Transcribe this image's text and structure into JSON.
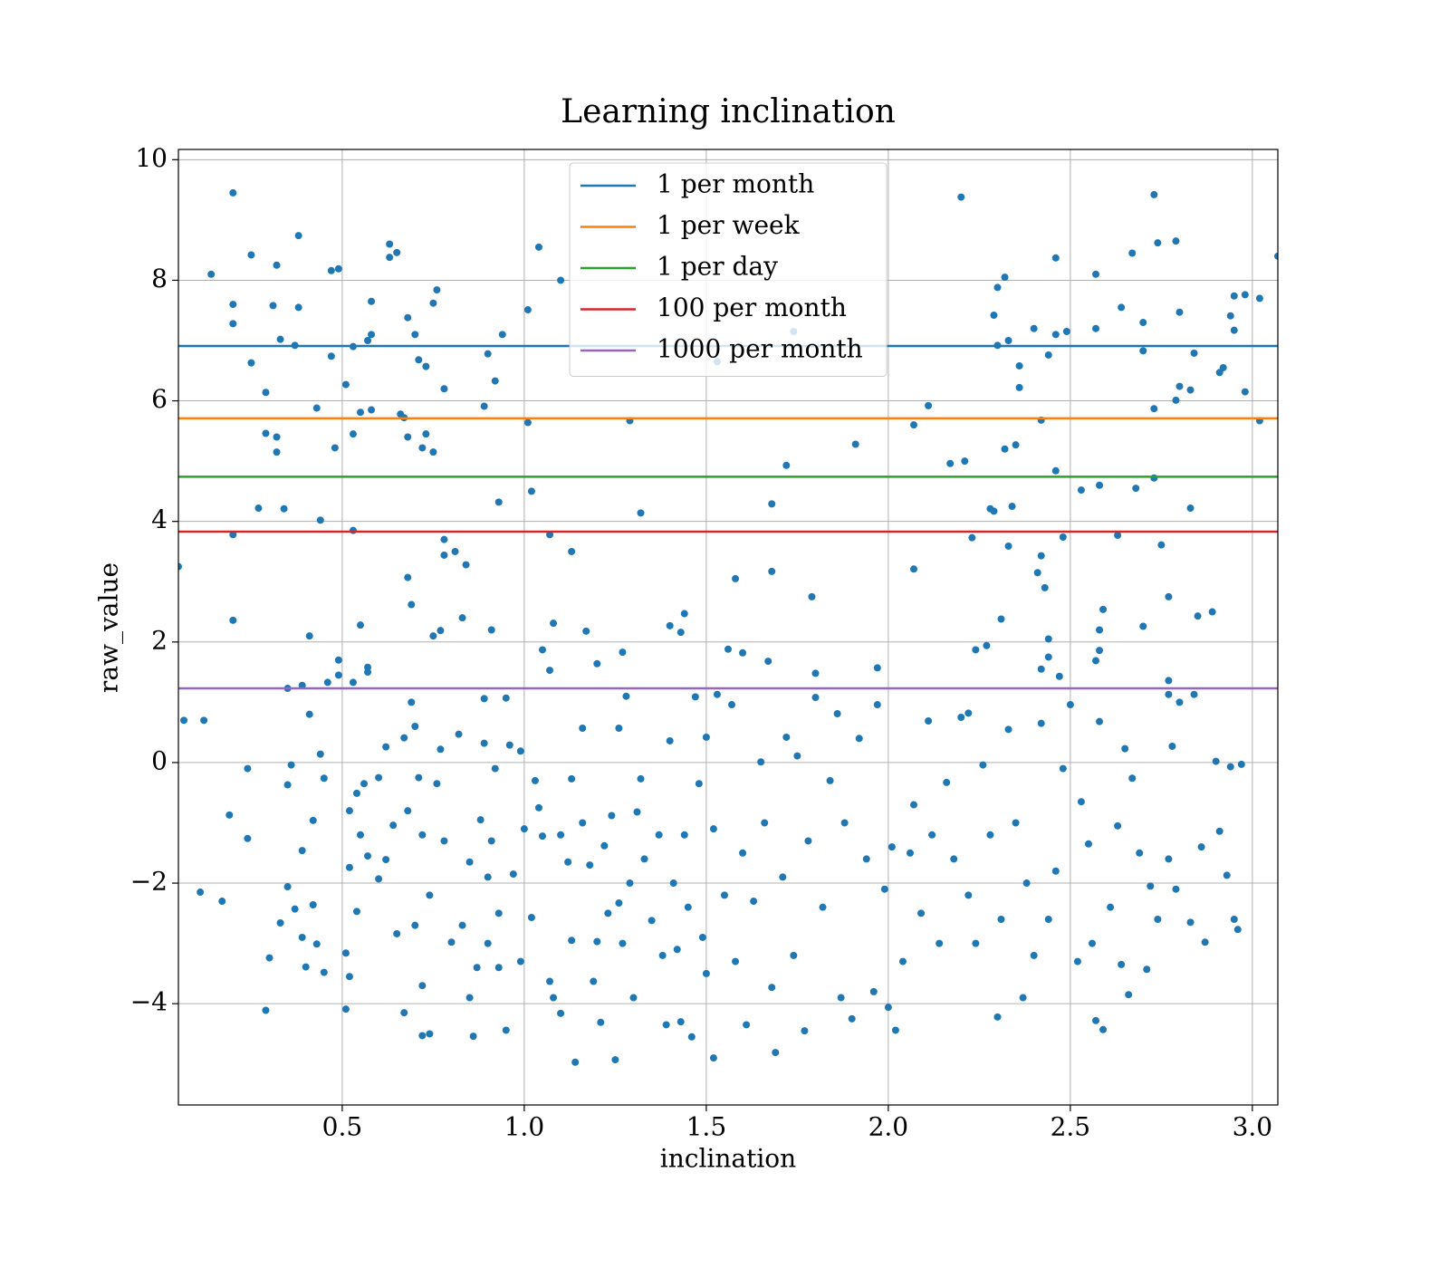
{
  "chart_data": {
    "type": "scatter",
    "title": "Learning inclination",
    "x_label": "inclination",
    "y_label": "raw_value",
    "color": "#1f77b4",
    "grid": true,
    "legend": "upper center",
    "xlim": [
      0.05,
      3.07
    ],
    "ylim": [
      -5.68,
      10.17
    ],
    "xticks": [
      0.5,
      {
        "value": 1,
        "label": "1.0"
      },
      1.5,
      {
        "value": 2,
        "label": "2.0"
      },
      2.5,
      {
        "value": 3,
        "label": "3.0"
      }
    ],
    "yticks": [
      {
        "value": -4,
        "label": "−4"
      },
      {
        "value": -2,
        "label": "−2"
      },
      0,
      2,
      4,
      6,
      8,
      10
    ],
    "hlines": [
      {
        "name": "1 per month",
        "color": "#1f77b4",
        "value": 6.91
      },
      {
        "name": "1 per week",
        "color": "#ff7f0e",
        "value": 5.71
      },
      {
        "name": "1 per day",
        "color": "#2ca02c",
        "value": 4.74
      },
      {
        "name": "100 per month",
        "color": "#d62728",
        "value": 3.83
      },
      {
        "name": "1000 per month",
        "color": "#9467bd",
        "value": 1.23
      }
    ],
    "x": [
      0.05,
      0.065,
      0.12,
      0.14,
      0.2,
      0.2,
      0.2,
      0.2,
      0.2,
      0.19,
      0.24,
      0.25,
      0.25,
      0.27,
      0.29,
      0.29,
      0.31,
      0.32,
      0.32,
      0.32,
      0.33,
      0.34,
      0.35,
      0.37,
      0.38,
      0.38,
      0.39,
      0.39,
      0.41,
      0.41,
      0.43,
      0.44,
      0.44,
      0.46,
      0.47,
      0.47,
      0.48,
      0.49,
      0.49,
      0.49,
      0.51,
      0.53,
      0.53,
      0.53,
      0.53,
      0.55,
      0.55,
      0.57,
      0.58,
      0.58,
      0.58,
      0.57,
      0.57,
      0.63,
      0.63,
      0.65,
      0.66,
      0.67,
      0.68,
      0.68,
      0.68,
      0.69,
      0.7,
      0.71,
      0.73,
      0.72,
      0.73,
      0.75,
      0.75,
      0.76,
      0.77,
      0.75,
      0.78,
      0.78,
      0.78,
      0.81,
      0.83,
      0.84,
      0.89,
      0.9,
      0.92,
      0.91,
      0.93,
      0.94,
      1.01,
      1.01,
      1.02,
      1.04,
      1.07,
      1.07,
      1.08,
      1.05,
      1.1,
      1.13,
      1.17,
      1.2,
      1.27,
      1.29,
      1.32,
      1.4,
      1.43,
      1.44,
      1.53,
      1.56,
      1.58,
      1.6,
      1.67,
      1.68,
      1.68,
      1.72,
      1.74,
      1.79,
      1.8,
      1.91,
      1.97,
      2.07,
      2.07,
      2.11,
      2.17,
      2.2,
      2.21,
      2.23,
      2.24,
      2.27,
      2.28,
      2.29,
      2.29,
      2.3,
      2.3,
      2.31,
      2.32,
      2.32,
      2.33,
      2.33,
      2.34,
      2.35,
      2.36,
      2.36,
      2.4,
      2.41,
      2.42,
      2.42,
      2.43,
      2.44,
      2.44,
      2.44,
      2.42,
      2.46,
      2.46,
      2.46,
      2.47,
      2.48,
      2.49,
      2.53,
      2.57,
      2.57,
      2.58,
      2.58,
      2.58,
      2.57,
      2.59,
      2.63,
      2.64,
      2.67,
      2.68,
      2.7,
      2.7,
      2.7,
      2.73,
      2.73,
      2.73,
      2.74,
      2.75,
      2.77,
      2.77,
      2.77,
      2.79,
      2.79,
      2.8,
      2.8,
      2.8,
      2.83,
      2.83,
      2.84,
      2.84,
      2.85,
      2.89,
      2.91,
      2.92,
      2.94,
      2.95,
      2.95,
      2.98,
      2.98,
      3.02,
      3.02,
      3.07,
      0.11,
      0.17,
      0.24,
      0.29,
      0.3,
      0.33,
      0.35,
      0.35,
      0.36,
      0.37,
      0.39,
      0.4,
      0.42,
      0.42,
      0.43,
      0.45,
      0.45,
      0.51,
      0.51,
      0.52,
      0.52,
      0.52,
      0.54,
      0.54,
      0.55,
      0.56,
      0.57,
      0.6,
      0.6,
      0.62,
      0.62,
      0.64,
      0.65,
      0.67,
      0.67,
      0.68,
      0.69,
      0.7,
      0.7,
      0.71,
      0.72,
      0.72,
      0.72,
      0.74,
      0.74,
      0.76,
      0.77,
      0.78,
      0.8,
      0.82,
      0.83,
      0.85,
      0.85,
      0.86,
      0.87,
      0.88,
      0.89,
      0.89,
      0.9,
      0.9,
      0.91,
      0.92,
      0.93,
      0.93,
      0.95,
      0.95,
      0.96,
      0.97,
      0.99,
      0.99,
      1.0,
      1.02,
      1.03,
      1.04,
      1.05,
      1.07,
      1.08,
      1.1,
      1.1,
      1.12,
      1.13,
      1.13,
      1.14,
      1.16,
      1.16,
      1.18,
      1.19,
      1.2,
      1.21,
      1.22,
      1.23,
      1.24,
      1.25,
      1.26,
      1.26,
      1.27,
      1.28,
      1.29,
      1.3,
      1.31,
      1.32,
      1.33,
      1.35,
      1.37,
      1.38,
      1.39,
      1.4,
      1.41,
      1.42,
      1.43,
      1.44,
      1.45,
      1.46,
      1.47,
      1.48,
      1.49,
      1.5,
      1.5,
      1.52,
      1.52,
      1.53,
      1.55,
      1.57,
      1.58,
      1.6,
      1.61,
      1.63,
      1.65,
      1.66,
      1.68,
      1.69,
      1.71,
      1.72,
      1.74,
      1.75,
      1.77,
      1.78,
      1.8,
      1.82,
      1.84,
      1.86,
      1.87,
      1.88,
      1.9,
      1.92,
      1.94,
      1.96,
      1.97,
      1.99,
      2.0,
      2.01,
      2.02,
      2.04,
      2.06,
      2.07,
      2.09,
      2.11,
      2.12,
      2.14,
      2.16,
      2.18,
      2.2,
      2.22,
      2.22,
      2.24,
      2.26,
      2.28,
      2.3,
      2.31,
      2.33,
      2.35,
      2.37,
      2.38,
      2.4,
      2.42,
      2.44,
      2.46,
      2.48,
      2.5,
      2.52,
      2.53,
      2.55,
      2.56,
      2.57,
      2.58,
      2.59,
      2.61,
      2.63,
      2.64,
      2.65,
      2.66,
      2.67,
      2.69,
      2.71,
      2.72,
      2.74,
      2.77,
      2.78,
      2.79,
      2.83,
      2.86,
      2.87,
      2.9,
      2.91,
      2.93,
      2.94,
      2.95,
      2.96,
      2.97
    ],
    "y": [
      3.25,
      0.7,
      0.7,
      8.1,
      9.45,
      7.6,
      7.28,
      3.78,
      2.36,
      -0.87,
      -0.1,
      8.42,
      6.63,
      4.22,
      6.14,
      5.46,
      7.58,
      8.25,
      5.4,
      5.15,
      7.02,
      4.21,
      1.23,
      6.92,
      8.74,
      7.55,
      -1.46,
      1.28,
      0.8,
      2.1,
      5.88,
      4.02,
      0.14,
      1.33,
      8.16,
      6.74,
      5.22,
      8.19,
      1.7,
      1.45,
      6.27,
      5.45,
      6.9,
      3.85,
      1.33,
      2.28,
      5.81,
      7.0,
      7.65,
      7.1,
      5.85,
      1.58,
      1.5,
      8.6,
      8.38,
      8.46,
      5.78,
      5.72,
      7.38,
      5.4,
      3.07,
      2.62,
      7.1,
      6.68,
      6.57,
      5.22,
      5.45,
      7.62,
      5.15,
      7.84,
      2.19,
      2.1,
      6.2,
      3.7,
      3.44,
      3.5,
      2.4,
      3.28,
      5.91,
      6.78,
      6.33,
      2.2,
      4.32,
      7.1,
      7.51,
      5.64,
      4.5,
      8.55,
      3.78,
      1.53,
      2.31,
      1.87,
      8.0,
      3.5,
      2.18,
      1.64,
      1.83,
      5.67,
      4.14,
      2.27,
      2.16,
      2.47,
      6.65,
      1.88,
      3.05,
      1.82,
      1.68,
      3.17,
      4.29,
      4.93,
      7.15,
      2.75,
      1.48,
      5.28,
      1.57,
      5.6,
      3.21,
      5.92,
      4.96,
      9.38,
      5.0,
      3.73,
      1.87,
      1.94,
      4.21,
      4.17,
      7.42,
      7.88,
      6.92,
      2.38,
      5.2,
      8.05,
      7.0,
      3.59,
      4.25,
      5.27,
      6.22,
      6.58,
      7.2,
      3.15,
      3.43,
      5.68,
      2.9,
      6.76,
      2.05,
      1.75,
      1.55,
      8.37,
      7.1,
      4.84,
      1.43,
      3.74,
      7.15,
      4.52,
      7.2,
      8.1,
      4.6,
      2.2,
      1.86,
      1.69,
      2.54,
      3.77,
      7.55,
      8.45,
      4.55,
      6.83,
      7.3,
      2.26,
      9.42,
      5.87,
      4.72,
      8.62,
      3.61,
      2.75,
      1.36,
      1.13,
      8.65,
      6.01,
      7.47,
      6.24,
      1.0,
      6.18,
      4.22,
      6.79,
      1.13,
      2.43,
      2.5,
      6.47,
      6.55,
      7.41,
      7.74,
      7.17,
      7.76,
      6.15,
      7.7,
      5.67,
      8.4,
      -2.15,
      -2.3,
      -1.26,
      -4.11,
      -3.24,
      -2.66,
      -0.37,
      -2.06,
      -0.04,
      -2.43,
      -2.9,
      -3.39,
      -0.96,
      -2.36,
      -3.01,
      -0.26,
      -3.48,
      -3.16,
      -4.09,
      -0.8,
      -1.74,
      -3.55,
      -0.51,
      -2.47,
      -1.2,
      -0.35,
      -1.55,
      -0.25,
      -1.93,
      0.26,
      -1.61,
      -1.04,
      -2.84,
      0.41,
      -4.15,
      -0.8,
      1.0,
      0.6,
      -2.7,
      -0.25,
      -1.2,
      -3.7,
      -4.53,
      -4.5,
      -2.2,
      -0.35,
      0.22,
      -1.3,
      -2.98,
      0.47,
      -2.7,
      -1.65,
      -3.9,
      -4.54,
      -3.4,
      -0.95,
      0.32,
      1.06,
      -1.9,
      -3.0,
      -1.3,
      -0.1,
      -2.5,
      -3.4,
      1.07,
      -4.44,
      0.29,
      -1.85,
      0.19,
      -3.3,
      -1.1,
      -2.57,
      -0.3,
      -0.75,
      -1.22,
      -3.63,
      -3.9,
      -1.2,
      -4.16,
      -1.65,
      -0.27,
      -2.95,
      -4.97,
      0.57,
      -1.0,
      -1.7,
      -3.63,
      -2.97,
      -4.31,
      -1.38,
      -2.5,
      -0.88,
      -4.93,
      0.57,
      -2.33,
      -3.0,
      1.1,
      -2.0,
      -3.9,
      -0.82,
      -0.27,
      -1.6,
      -2.62,
      -1.2,
      -3.2,
      -4.35,
      0.36,
      -2.0,
      -3.1,
      -4.3,
      -1.2,
      -2.4,
      -4.55,
      1.09,
      -0.35,
      -2.9,
      0.42,
      -3.5,
      -1.1,
      -4.9,
      1.13,
      -2.2,
      0.96,
      -3.3,
      -1.5,
      -4.35,
      -2.3,
      0.01,
      -1.0,
      -3.73,
      -4.81,
      -1.9,
      0.42,
      -3.2,
      0.11,
      -4.45,
      -1.3,
      1.08,
      -2.4,
      -0.3,
      0.81,
      -3.9,
      -1.0,
      -4.25,
      0.4,
      -1.6,
      -3.8,
      0.96,
      -2.1,
      -4.06,
      -1.4,
      -4.44,
      -3.3,
      -1.5,
      -0.7,
      -2.5,
      0.69,
      -1.2,
      -3.0,
      -0.33,
      -1.6,
      0.75,
      -2.2,
      0.82,
      -3.0,
      -0.04,
      -1.2,
      -4.22,
      -2.6,
      0.55,
      -1.0,
      -3.9,
      -2.0,
      -3.2,
      0.65,
      -2.6,
      -1.8,
      -0.1,
      0.96,
      -3.3,
      -0.65,
      -1.35,
      -3.0,
      -4.28,
      0.68,
      -4.43,
      -2.4,
      -1.05,
      -3.35,
      0.23,
      -3.85,
      -0.26,
      -1.5,
      -3.43,
      -2.05,
      -2.6,
      -1.6,
      0.27,
      -2.1,
      -2.65,
      -1.4,
      -2.98,
      0.02,
      -1.14,
      -1.87,
      -0.07,
      -2.6,
      -2.77,
      -0.03
    ]
  }
}
